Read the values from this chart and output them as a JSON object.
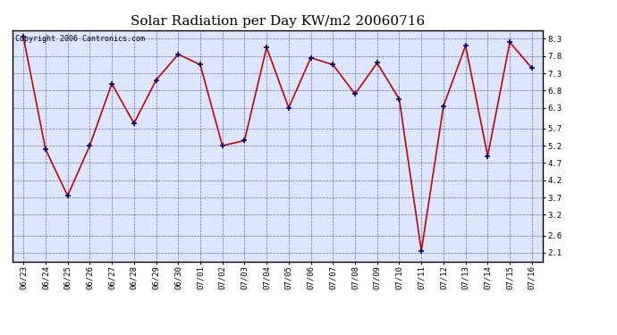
{
  "title": "Solar Radiation per Day KW/m2 20060716",
  "copyright_text": "Copyright 2006 Cantronics.com",
  "labels": [
    "06/23",
    "06/24",
    "06/25",
    "06/26",
    "06/27",
    "06/28",
    "06/29",
    "06/30",
    "07/01",
    "07/02",
    "07/03",
    "07/04",
    "07/05",
    "07/06",
    "07/07",
    "07/08",
    "07/09",
    "07/10",
    "07/11",
    "07/12",
    "07/13",
    "07/14",
    "07/15",
    "07/16"
  ],
  "values": [
    8.35,
    5.1,
    3.75,
    5.2,
    7.0,
    5.85,
    7.1,
    7.85,
    7.55,
    5.2,
    5.35,
    8.05,
    6.3,
    7.75,
    7.55,
    6.7,
    7.6,
    6.55,
    2.15,
    6.35,
    8.1,
    4.9,
    8.2,
    7.45
  ],
  "line_color": "#cc0000",
  "marker_color": "#000077",
  "bg_color": "#dce6ff",
  "outer_bg_color": "#ffffff",
  "grid_color": "#4444cc",
  "yticks": [
    2.1,
    2.6,
    3.2,
    3.7,
    4.2,
    4.7,
    5.2,
    5.7,
    6.3,
    6.8,
    7.3,
    7.8,
    8.3
  ],
  "ymin": 1.85,
  "ymax": 8.55,
  "title_fontsize": 11,
  "copyright_fontsize": 6,
  "tick_fontsize": 6.5
}
